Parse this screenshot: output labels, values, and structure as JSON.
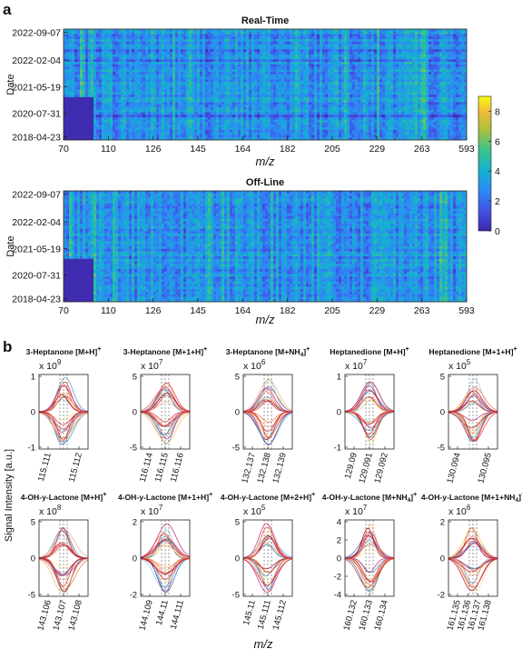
{
  "panels": {
    "a": "a",
    "b": "b"
  },
  "heatmaps": [
    {
      "title": "Real-Time",
      "ylabel": "Date",
      "xlabel": "m/z",
      "yticks": [
        "2022-09-07",
        "2022-02-04",
        "2021-05-19",
        "2020-07-31",
        "2018-04-23"
      ],
      "xticks": [
        "70",
        "110",
        "126",
        "145",
        "164",
        "182",
        "205",
        "229",
        "263",
        "593"
      ]
    },
    {
      "title": "Off-Line",
      "ylabel": "Date",
      "xlabel": "m/z",
      "yticks": [
        "2022-09-07",
        "2022-02-04",
        "2021-05-19",
        "2020-07-31",
        "2018-04-23"
      ],
      "xticks": [
        "70",
        "110",
        "126",
        "145",
        "164",
        "182",
        "205",
        "229",
        "263",
        "593"
      ]
    }
  ],
  "colorbar": {
    "min": 0,
    "max": 9,
    "ticks": [
      "8",
      "6",
      "4",
      "2",
      "0"
    ]
  },
  "peaks_ylabel": "Signal Intensity [a.u.]",
  "peaks_xlabel": "m/z",
  "chart_data": [
    {
      "type": "heatmap",
      "title": "Real-Time",
      "xlabel": "m/z",
      "ylabel": "Date",
      "x_tick_labels": [
        "70",
        "110",
        "126",
        "145",
        "164",
        "182",
        "205",
        "229",
        "263",
        "593"
      ],
      "y_tick_labels": [
        "2022-09-07",
        "2022-02-04",
        "2021-05-19",
        "2020-07-31",
        "2018-04-23"
      ],
      "color_range": [
        0,
        9
      ]
    },
    {
      "type": "heatmap",
      "title": "Off-Line",
      "xlabel": "m/z",
      "ylabel": "Date",
      "x_tick_labels": [
        "70",
        "110",
        "126",
        "145",
        "164",
        "182",
        "205",
        "229",
        "263",
        "593"
      ],
      "y_tick_labels": [
        "2022-09-07",
        "2022-02-04",
        "2021-05-19",
        "2020-07-31",
        "2018-04-23"
      ],
      "color_range": [
        0,
        9
      ]
    },
    {
      "type": "line",
      "ylabel": "Signal Intensity [a.u.]",
      "xlabel": "m/z",
      "panels": [
        {
          "name": "3-Heptanone [M+H]",
          "sup": "+",
          "exp": "9",
          "yticks": [
            "1",
            "0",
            "-1"
          ],
          "xticks": [
            "115.111",
            "115.112"
          ]
        },
        {
          "name": "3-Heptanone [M+1+H]",
          "sup": "+",
          "exp": "7",
          "yticks": [
            "5",
            "0",
            "-5"
          ],
          "xticks": [
            "116.114",
            "116.115",
            "116.116"
          ]
        },
        {
          "name": "3-Heptanone [M+NH",
          "sub": "4",
          "close": "]",
          "sup": "+",
          "exp": "6",
          "yticks": [
            "5",
            "0",
            "-5"
          ],
          "xticks": [
            "132.137",
            "132.138",
            "132.139"
          ]
        },
        {
          "name": "Heptanedione [M+H]",
          "sup": "+",
          "exp": "7",
          "yticks": [
            "1",
            "0",
            "-1"
          ],
          "xticks": [
            "129.09",
            "129.091",
            "129.092"
          ]
        },
        {
          "name": "Heptanedione [M+1+H]",
          "sup": "+",
          "exp": "5",
          "yticks": [
            "5",
            "0",
            "-5"
          ],
          "xticks": [
            "130.094",
            "130.095"
          ]
        },
        {
          "name": "4-OH-y-Lactone [M+H]",
          "sup": "+",
          "exp": "8",
          "yticks": [
            "5",
            "0",
            "-5"
          ],
          "xticks": [
            "143.106",
            "143.107",
            "143.108"
          ]
        },
        {
          "name": "4-OH-y-Lactone [M+1+H]",
          "sup": "+",
          "exp": "7",
          "yticks": [
            "2",
            "0",
            "-2"
          ],
          "xticks": [
            "144.109",
            "144.11",
            "144.111"
          ]
        },
        {
          "name": "4-OH-y-Lactone [M+2+H]",
          "sup": "+",
          "exp": "5",
          "yticks": [
            "5",
            "0",
            "-5"
          ],
          "xticks": [
            "145.11",
            "145.111",
            "145.112"
          ]
        },
        {
          "name": "4-OH-y-Lactone [M+NH",
          "sub": "4",
          "close": "]",
          "sup": "+",
          "exp": "7",
          "yticks": [
            "4",
            "2",
            "0",
            "-2",
            "-4"
          ],
          "xticks": [
            "160.132",
            "160.133",
            "160.134"
          ]
        },
        {
          "name": "4-OH-y-Lactone [M+1+NH",
          "sub": "4",
          "close": "]",
          "sup": "+",
          "exp": "6",
          "yticks": [
            "2",
            "0",
            "-2"
          ],
          "xticks": [
            "161.135",
            "161.136",
            "161.137",
            "161.138"
          ]
        }
      ]
    }
  ]
}
